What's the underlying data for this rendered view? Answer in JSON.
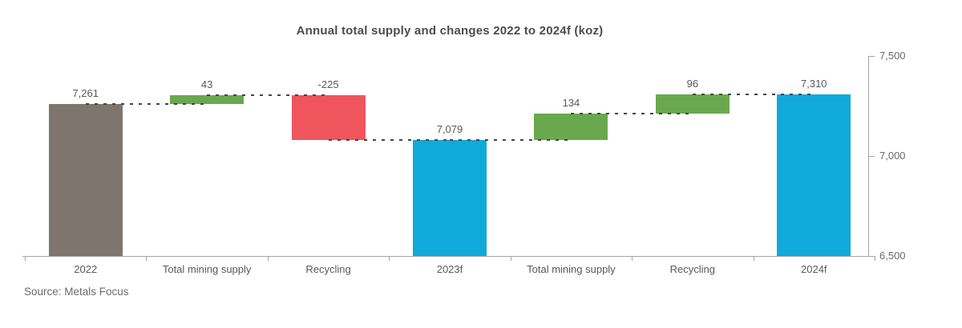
{
  "title": "Annual total supply and changes 2022 to 2024f (koz)",
  "source": "Source: Metals Focus",
  "chart_data": {
    "type": "bar",
    "subtype": "waterfall",
    "title": "Annual total supply and changes 2022 to 2024f (koz)",
    "categories": [
      "2022",
      "Total mining supply",
      "Recycling",
      "2023f",
      "Total mining supply",
      "Recycling",
      "2024f"
    ],
    "bars": [
      {
        "label": "2022",
        "value": 7261,
        "display": "7,261",
        "kind": "total"
      },
      {
        "label": "Total mining supply",
        "value": 43,
        "display": "43",
        "kind": "increase"
      },
      {
        "label": "Recycling",
        "value": -225,
        "display": "-225",
        "kind": "decrease"
      },
      {
        "label": "2023f",
        "value": 7079,
        "display": "7,079",
        "kind": "subtotal"
      },
      {
        "label": "Total mining supply",
        "value": 134,
        "display": "134",
        "kind": "increase"
      },
      {
        "label": "Recycling",
        "value": 96,
        "display": "96",
        "kind": "increase"
      },
      {
        "label": "2024f",
        "value": 7310,
        "display": "7,310",
        "kind": "subtotal"
      }
    ],
    "y_axis": {
      "side": "right",
      "min": 6500,
      "max": 7500,
      "ticks": [
        {
          "value": 7500,
          "label": "7,500"
        },
        {
          "value": 7000,
          "label": "7,000"
        },
        {
          "value": 6500,
          "label": "6,500"
        }
      ]
    },
    "grid": "off",
    "legend": "none",
    "connectors": "dotted",
    "colors": {
      "total": "#7e766e",
      "subtotal": "#10a9dc",
      "increase": "#6aa84e",
      "decrease": "#f0555e",
      "axis": "#a6a6a6",
      "text": "#595959",
      "connector": "#454545"
    }
  }
}
